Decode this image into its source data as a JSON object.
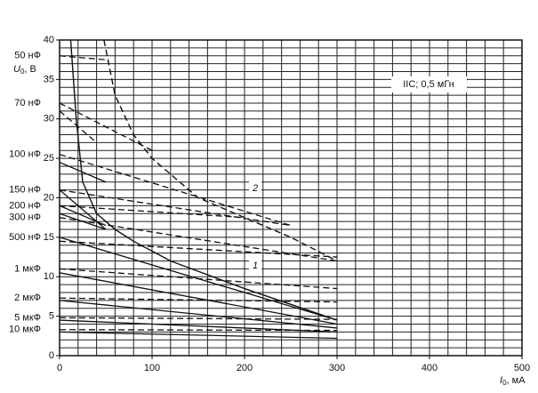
{
  "chart_data": {
    "type": "line",
    "xlabel": {
      "main": "I",
      "sub": "0",
      "rest": ", мА"
    },
    "ylabel": {
      "main": "U",
      "sub": "0",
      "rest": ", В"
    },
    "annotation": "IIC; 0,5 мГн",
    "xlim": [
      0,
      500
    ],
    "ylim": [
      0,
      40
    ],
    "xticks": [
      0,
      100,
      200,
      300,
      400,
      500
    ],
    "yticks": [
      0,
      5,
      10,
      15,
      20,
      25,
      30,
      35,
      40
    ],
    "x_grid_step": 20,
    "y_grid_step": 1,
    "grid": true,
    "color": "#111111",
    "series": [
      {
        "name": "1",
        "dashed": false,
        "x": [
          12,
          18,
          25,
          40,
          60,
          80,
          120,
          200,
          300
        ],
        "values": [
          40,
          30,
          22,
          18,
          16,
          14.5,
          12,
          8.5,
          4.5
        ]
      },
      {
        "name": "2",
        "dashed": true,
        "x": [
          48,
          60,
          80,
          100,
          150,
          200,
          250,
          300
        ],
        "values": [
          40,
          33,
          28,
          25,
          20,
          17.5,
          15,
          12
        ]
      }
    ],
    "capacitances": [
      {
        "label": "50 нФ",
        "lines": [
          {
            "dashed": true,
            "x": [
              0,
              50
            ],
            "values": [
              38,
              37.5
            ]
          }
        ]
      },
      {
        "label": "70 нФ",
        "lines": [
          {
            "dashed": true,
            "x": [
              0,
              100
            ],
            "values": [
              32,
              26
            ]
          },
          {
            "dashed": true,
            "x": [
              0,
              40
            ],
            "values": [
              31,
              27
            ]
          }
        ]
      },
      {
        "label": "100 нФ",
        "lines": [
          {
            "dashed": true,
            "x": [
              0,
              250
            ],
            "values": [
              25.5,
              16.5
            ]
          },
          {
            "dashed": false,
            "x": [
              0,
              50
            ],
            "values": [
              24.5,
              22
            ]
          }
        ]
      },
      {
        "label": "150 нФ",
        "lines": [
          {
            "dashed": false,
            "x": [
              0,
              50
            ],
            "values": [
              21,
              16
            ]
          },
          {
            "dashed": true,
            "x": [
              0,
              250
            ],
            "values": [
              21,
              16.5
            ]
          }
        ]
      },
      {
        "label": "200 нФ",
        "lines": [
          {
            "dashed": true,
            "x": [
              0,
              200
            ],
            "values": [
              19,
              17.5
            ]
          },
          {
            "dashed": false,
            "x": [
              0,
              50
            ],
            "values": [
              19,
              16.5
            ]
          }
        ]
      },
      {
        "label": "300 нФ",
        "lines": [
          {
            "dashed": true,
            "x": [
              0,
              300
            ],
            "values": [
              17.5,
              12
            ]
          },
          {
            "dashed": false,
            "x": [
              0,
              50
            ],
            "values": [
              18,
              16
            ]
          }
        ]
      },
      {
        "label": "500 нФ",
        "lines": [
          {
            "dashed": false,
            "x": [
              0,
              300
            ],
            "values": [
              15,
              4.5
            ]
          },
          {
            "dashed": true,
            "x": [
              0,
              300
            ],
            "values": [
              14.5,
              12.5
            ]
          }
        ]
      },
      {
        "label": "1 мкФ",
        "lines": [
          {
            "dashed": true,
            "x": [
              0,
              300
            ],
            "values": [
              11,
              8.5
            ]
          },
          {
            "dashed": false,
            "x": [
              0,
              300
            ],
            "values": [
              10.5,
              4
            ]
          }
        ]
      },
      {
        "label": "2 мкФ",
        "lines": [
          {
            "dashed": true,
            "x": [
              0,
              300
            ],
            "values": [
              7.3,
              6.8
            ]
          },
          {
            "dashed": false,
            "x": [
              0,
              300
            ],
            "values": [
              7,
              3.5
            ]
          }
        ]
      },
      {
        "label": "5 мкФ",
        "lines": [
          {
            "dashed": true,
            "x": [
              0,
              300
            ],
            "values": [
              4.8,
              4.6
            ]
          },
          {
            "dashed": false,
            "x": [
              0,
              300
            ],
            "values": [
              4.5,
              3
            ]
          }
        ]
      },
      {
        "label": "10 мкФ",
        "lines": [
          {
            "dashed": true,
            "x": [
              0,
              300
            ],
            "values": [
              3.3,
              3.2
            ]
          },
          {
            "dashed": false,
            "x": [
              0,
              300
            ],
            "values": [
              3,
              2.2
            ]
          }
        ]
      }
    ]
  }
}
